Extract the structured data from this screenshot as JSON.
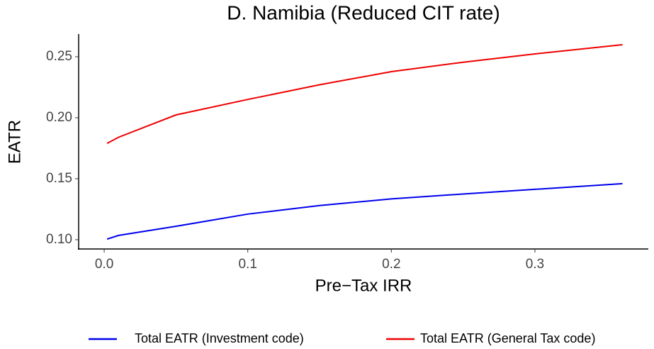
{
  "chart_data": {
    "type": "line",
    "title": "D. Namibia (Reduced CIT rate)",
    "x_label": "Pre−Tax IRR",
    "y_label": "EATR",
    "x": [
      0.002,
      0.01,
      0.05,
      0.1,
      0.15,
      0.2,
      0.25,
      0.3,
      0.361
    ],
    "series": [
      {
        "name": "Total EATR (Investment code)",
        "color": "#0000ee",
        "values": [
          0.1005,
          0.1035,
          0.111,
          0.121,
          0.128,
          0.1335,
          0.1375,
          0.1413,
          0.146
        ]
      },
      {
        "name": "Total EATR (General Tax code)",
        "color": "#ee0000",
        "values": [
          0.179,
          0.184,
          0.2023,
          0.215,
          0.227,
          0.2378,
          0.2455,
          0.2523,
          0.2599
        ]
      }
    ],
    "xlim": [
      -0.0178,
      0.379
    ],
    "ylim": [
      0.0924,
      0.2686
    ],
    "xticks": [
      {
        "value": 0,
        "label": "0.0"
      },
      0.1,
      0.2,
      0.3
    ],
    "yticks": [
      {
        "value": 0.1,
        "label": "0.10"
      },
      0.15,
      {
        "value": 0.2,
        "label": "0.20"
      },
      0.25
    ],
    "legend": "bottom",
    "grid": false
  }
}
